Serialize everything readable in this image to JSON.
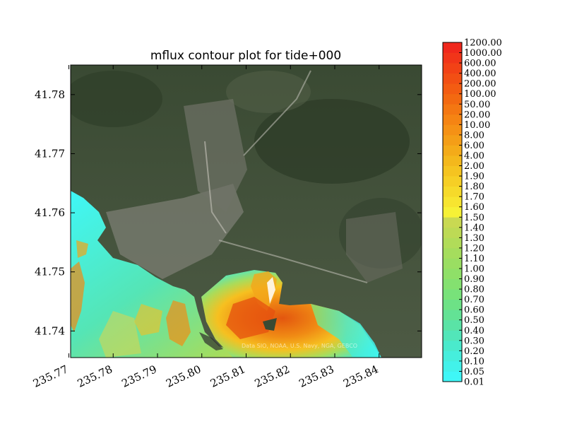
{
  "chart_data": {
    "type": "heatmap",
    "title": "mflux contour plot for tide+000",
    "xlabel": "",
    "ylabel": "",
    "x_ticks": [
      235.77,
      235.78,
      235.79,
      235.8,
      235.81,
      235.82,
      235.83,
      235.84
    ],
    "x_tick_labels": [
      "235.77",
      "235.78",
      "235.79",
      "235.80",
      "235.81",
      "235.82",
      "235.83",
      "235.84"
    ],
    "xlim": [
      235.7704,
      235.8496
    ],
    "y_ticks": [
      41.74,
      41.75,
      41.76,
      41.77,
      41.78
    ],
    "y_tick_labels": [
      "41.74",
      "41.75",
      "41.76",
      "41.77",
      "41.78"
    ],
    "ylim": [
      41.7355,
      41.785
    ],
    "background": "satellite imagery",
    "watermark": "Data SIO, NOAA, U.S. Navy, NGA, GEBCO",
    "colorbar": {
      "levels": [
        "0.01",
        "0.05",
        "0.10",
        "0.20",
        "0.30",
        "0.40",
        "0.50",
        "0.60",
        "0.70",
        "0.80",
        "0.90",
        "1.00",
        "1.10",
        "1.20",
        "1.30",
        "1.40",
        "1.50",
        "1.60",
        "1.70",
        "1.80",
        "1.90",
        "2.00",
        "4.00",
        "6.00",
        "8.00",
        "10.00",
        "20.00",
        "50.00",
        "100.00",
        "200.00",
        "400.00",
        "600.00",
        "1000.00",
        "1200.00"
      ],
      "colors": [
        "#3ff7f7",
        "#42f2ea",
        "#46eedc",
        "#4aeacc",
        "#52e6b9",
        "#5ae3a6",
        "#63e295",
        "#6de286",
        "#78e27a",
        "#84e170",
        "#8fe068",
        "#9ade62",
        "#a5dd5d",
        "#b1dc59",
        "#bdda55",
        "#c9d952",
        "#f6f136",
        "#f7e530",
        "#f6da2a",
        "#f6cf25",
        "#f5c420",
        "#f4b81c",
        "#f4ab19",
        "#f49e17",
        "#f59115",
        "#f58413",
        "#f47712",
        "#f36911",
        "#f35c12",
        "#f24f14",
        "#f24216",
        "#f13519",
        "#f0281c"
      ]
    }
  }
}
